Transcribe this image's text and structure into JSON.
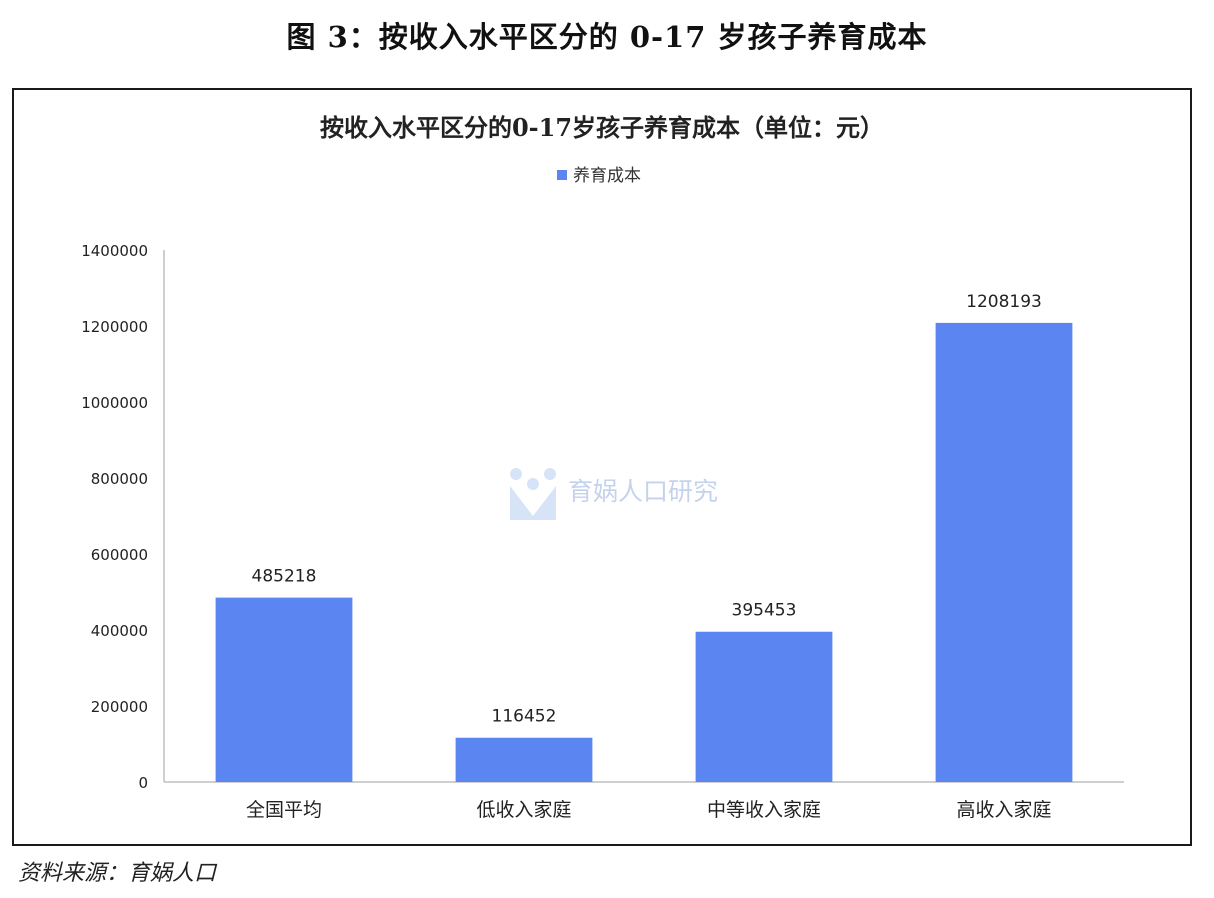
{
  "figure_caption": "图 3：按收入水平区分的 0-17 岁孩子养育成本",
  "source_note": "资料来源：育娲人口",
  "watermark": {
    "text": "育娲人口研究"
  },
  "colors": {
    "bar": "#5b86f2",
    "axis": "#bfbfbf",
    "text": "#222222"
  },
  "chart_data": {
    "type": "bar",
    "title": "按收入水平区分的0-17岁孩子养育成本（单位：元）",
    "legend": {
      "position": "top",
      "entries": [
        "养育成本"
      ]
    },
    "categories": [
      "全国平均",
      "低收入家庭",
      "中等收入家庭",
      "高收入家庭"
    ],
    "series": [
      {
        "name": "养育成本",
        "values": [
          485218,
          116452,
          395453,
          1208193
        ]
      }
    ],
    "data_labels": [
      "485218",
      "116452",
      "395453",
      "1208193"
    ],
    "y_ticks": [
      0,
      200000,
      400000,
      600000,
      800000,
      1000000,
      1200000,
      1400000
    ],
    "ylim": [
      0,
      1400000
    ],
    "grid": false
  }
}
